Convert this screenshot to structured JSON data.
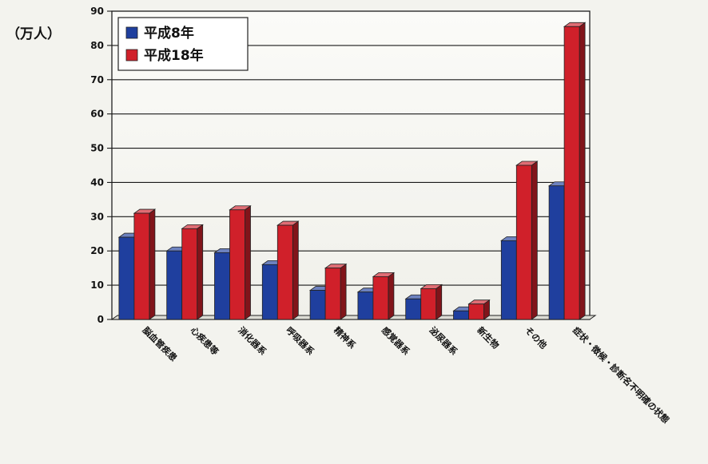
{
  "chart_data": {
    "type": "bar",
    "y_unit_label": "（万人）",
    "categories": [
      "脳血管疾患",
      "心疾患等",
      "消化器系",
      "呼吸器系",
      "精神系",
      "感覚器系",
      "泌尿器系",
      "新生物",
      "その他",
      "症状・徴候・診断名不明確の状態"
    ],
    "series": [
      {
        "name": "平成8年",
        "color": "#1f3f9e",
        "values": [
          24,
          20,
          19.5,
          16,
          8.5,
          8,
          6,
          2.5,
          23,
          39
        ]
      },
      {
        "name": "平成18年",
        "color": "#d0202a",
        "values": [
          31,
          26.5,
          32,
          27.5,
          15,
          12.5,
          9,
          4.5,
          45,
          85.5
        ]
      }
    ],
    "ylim": [
      0,
      90
    ],
    "yticks": [
      0,
      10,
      20,
      30,
      40,
      50,
      60,
      70,
      80,
      90
    ],
    "grid": true,
    "legend_position": "top-left"
  }
}
